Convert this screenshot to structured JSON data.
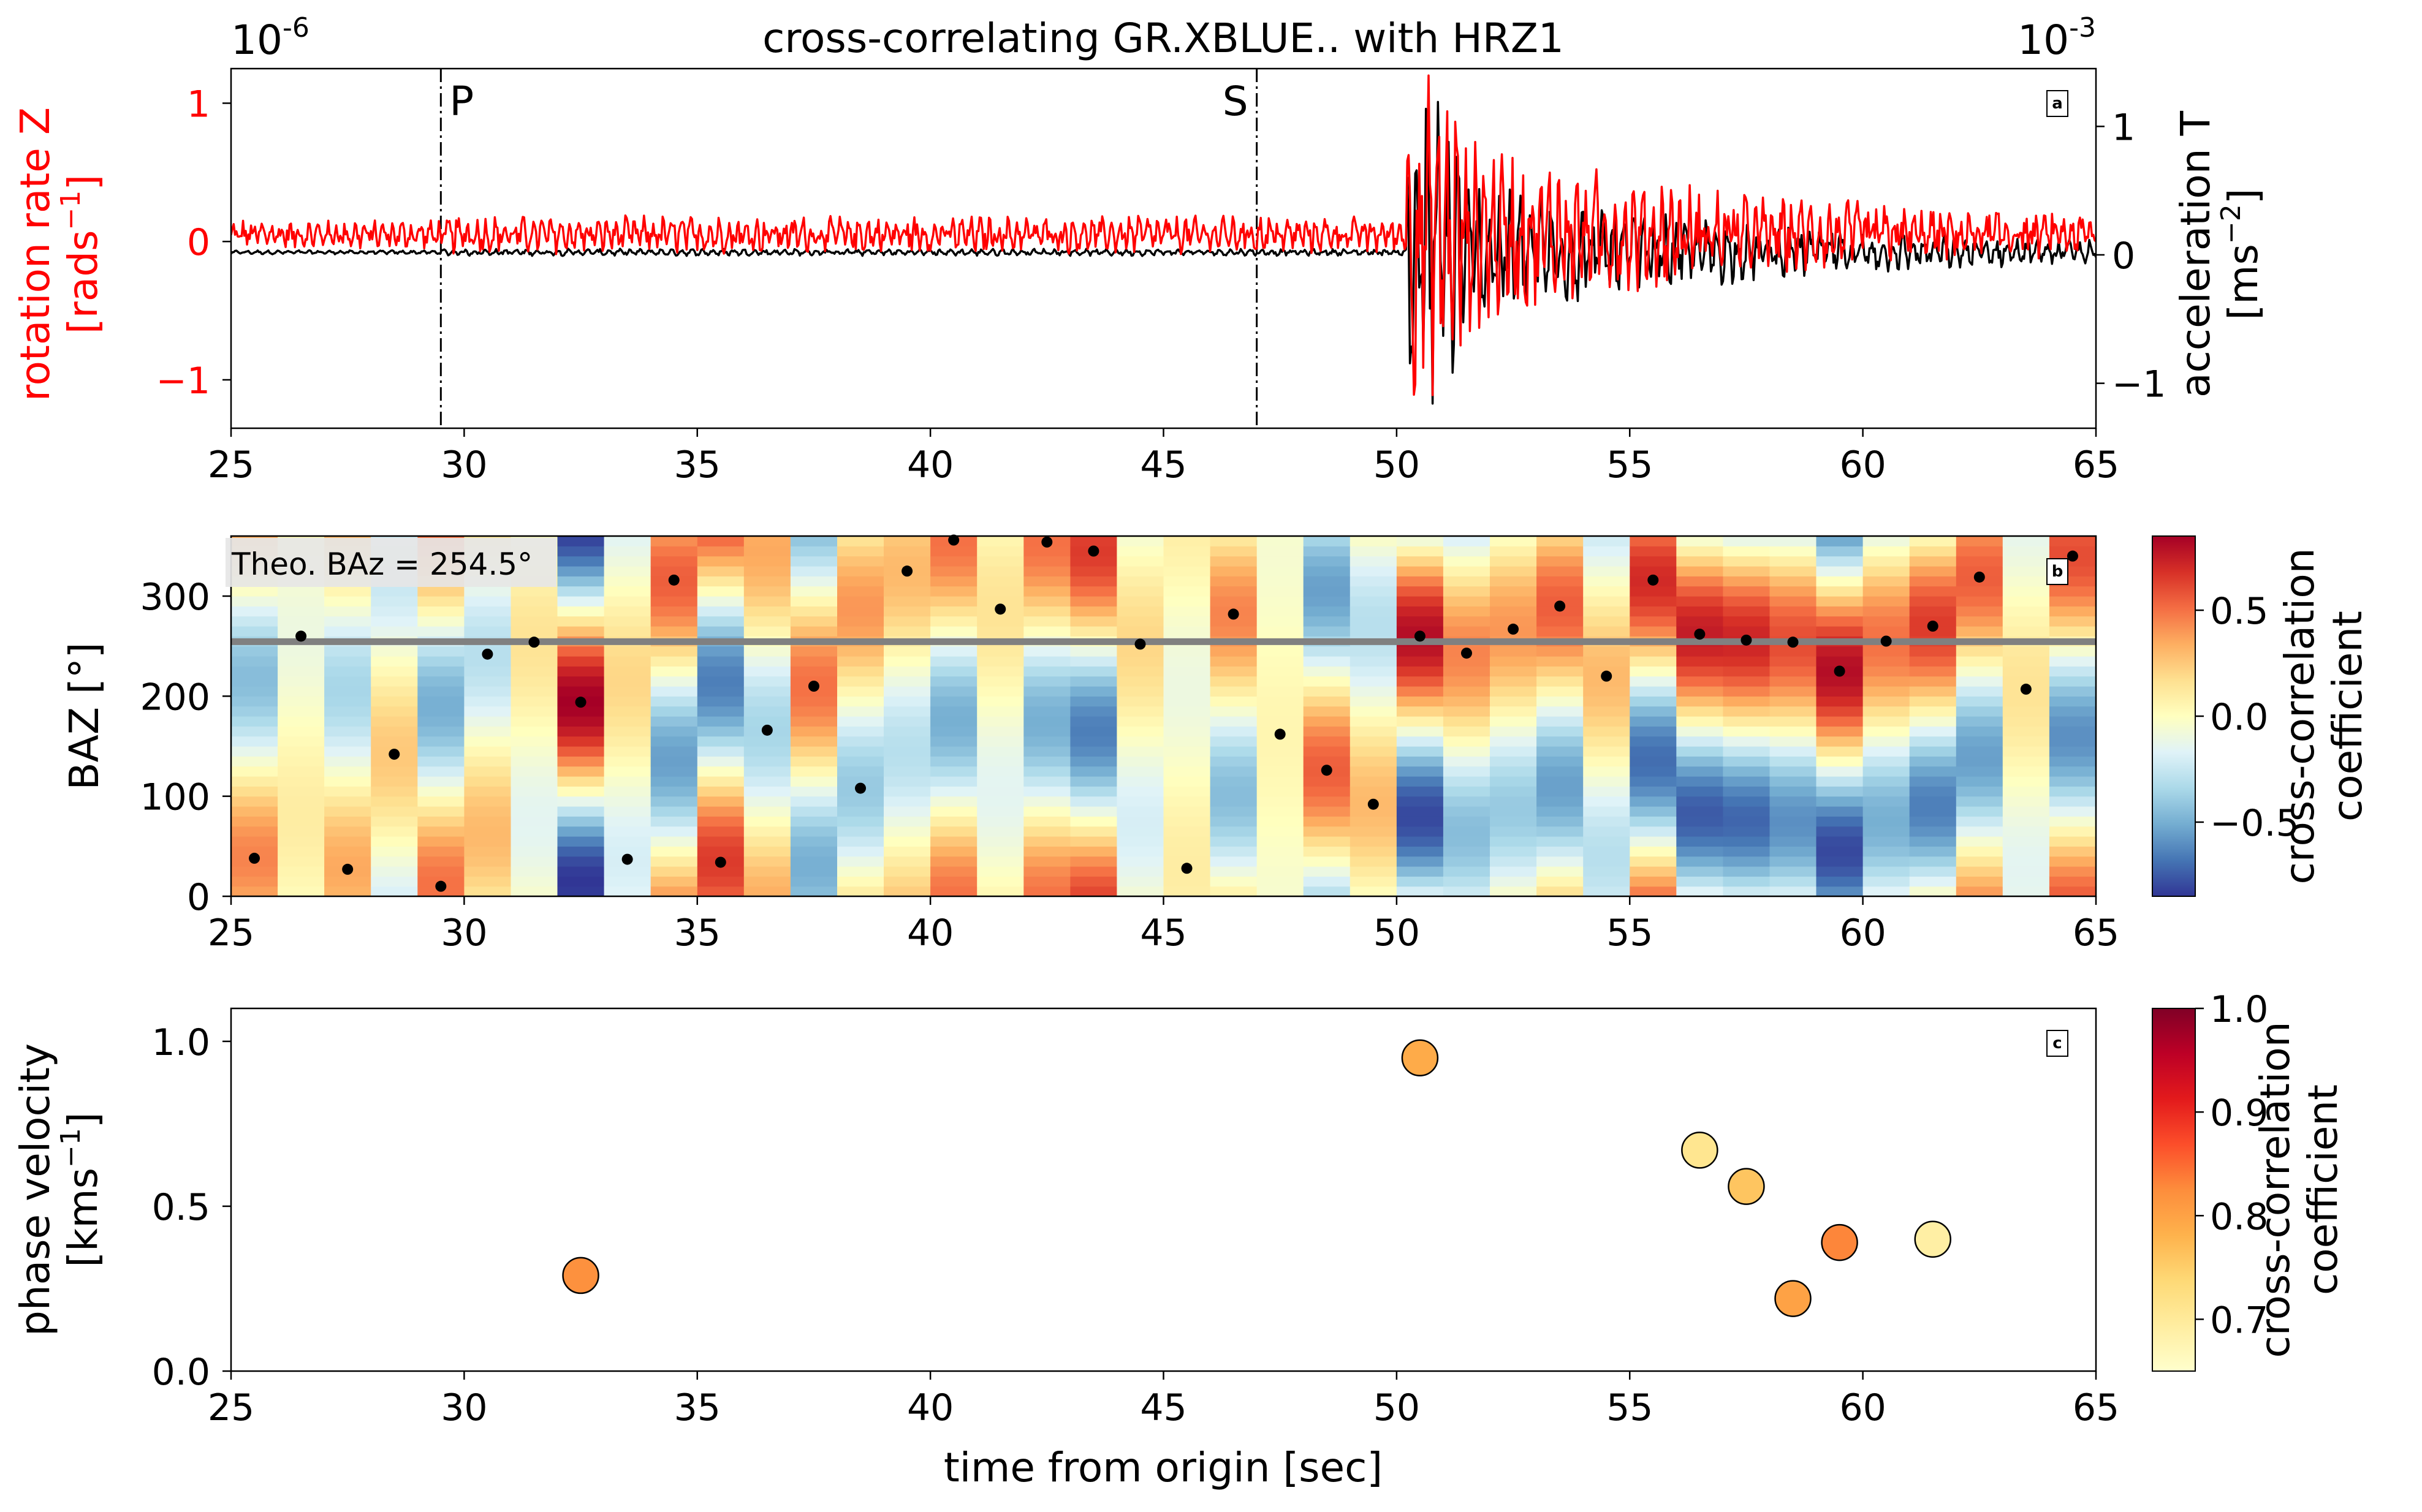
{
  "figure": {
    "title": "cross-correlating GR.XBLUE.. with HRZ1",
    "xlabel": "time from origin [sec]",
    "x_ticks": [
      "25",
      "30",
      "35",
      "40",
      "45",
      "50",
      "55",
      "60",
      "65"
    ]
  },
  "chart_data": [
    {
      "id": "a",
      "type": "line",
      "panel_label": "a",
      "xlim": [
        25,
        65
      ],
      "left_axis": {
        "label_line1": "rotation rate Z",
        "label_line2": "[rads",
        "label_sup": "−1",
        "label_end": "]",
        "scale": "10",
        "scale_exp": "-6",
        "ylim": [
          -1.35,
          1.25
        ],
        "ticks": [
          -1,
          0,
          1
        ],
        "tick_labels": [
          "−1",
          "0",
          "1"
        ],
        "color": "#ff0000"
      },
      "right_axis": {
        "label_line1": "acceleration T",
        "label_line2": "[ms",
        "label_sup": "−2",
        "label_end": "]",
        "scale": "10",
        "scale_exp": "-3",
        "ylim": [
          -1.35,
          1.45
        ],
        "ticks": [
          -1,
          0,
          1
        ],
        "tick_labels": [
          "−1",
          "0",
          "1"
        ],
        "color": "#000000"
      },
      "series": [
        {
          "name": "rotation rate Z",
          "axis": "left",
          "color": "#ff0000"
        },
        {
          "name": "acceleration T",
          "axis": "right",
          "color": "#000000"
        }
      ],
      "phase_markers": [
        {
          "label": "P",
          "time": 29.5
        },
        {
          "label": "S",
          "time": 47.0
        }
      ]
    },
    {
      "id": "b",
      "type": "heatmap",
      "panel_label": "b",
      "xlim": [
        25,
        65
      ],
      "ylim": [
        0,
        360
      ],
      "ylabel": "BAZ [°]",
      "y_ticks": [
        0,
        100,
        200,
        300
      ],
      "theo_baz": 254.5,
      "theo_label": "Theo. BAz = 254.5°",
      "colorbar": {
        "label_line1": "cross-correlation",
        "label_line2": "coefficient",
        "range": [
          -0.85,
          0.85
        ],
        "ticks": [
          "0.5",
          "0.0",
          "−0.5"
        ],
        "tick_values": [
          0.5,
          0.0,
          -0.5
        ]
      },
      "windows_start": 25,
      "window_length": 1,
      "max_baz": [
        38,
        260,
        27,
        142,
        10,
        242,
        254,
        194,
        37,
        316,
        34,
        166,
        210,
        108,
        325,
        356,
        287,
        354,
        345,
        252,
        28,
        282,
        162,
        126,
        92,
        260,
        243,
        267,
        290,
        220,
        316,
        262,
        256,
        254,
        225,
        255,
        270,
        319,
        207,
        340
      ],
      "max_cc": [
        0.45,
        -0.1,
        0.35,
        0.25,
        0.5,
        -0.3,
        0.15,
        0.85,
        -0.2,
        0.55,
        0.65,
        -0.35,
        0.5,
        -0.4,
        0.3,
        0.5,
        0.15,
        0.5,
        0.65,
        0.2,
        0.1,
        0.45,
        0.05,
        0.55,
        0.3,
        0.8,
        0.45,
        0.4,
        0.55,
        0.3,
        0.7,
        0.75,
        0.72,
        0.6,
        0.8,
        0.5,
        0.65,
        0.55,
        0.15,
        0.6
      ]
    },
    {
      "id": "c",
      "type": "scatter",
      "panel_label": "c",
      "xlim": [
        25,
        65
      ],
      "ylim": [
        0,
        1.1
      ],
      "ylabel_line1": "phase velocity",
      "ylabel_line2": "[kms",
      "ylabel_sup": "−1",
      "ylabel_end": "]",
      "y_ticks": [
        0.0,
        0.5,
        1.0
      ],
      "y_tick_labels": [
        "0.0",
        "0.5",
        "1.0"
      ],
      "colorbar": {
        "label_line1": "cross-correlation",
        "label_line2": "coefficient",
        "range": [
          0.65,
          1.0
        ],
        "ticks": [
          "1.0",
          "0.9",
          "0.8",
          "0.7"
        ],
        "tick_values": [
          1.0,
          0.9,
          0.8,
          0.7
        ]
      },
      "points": [
        {
          "time": 32.5,
          "velocity": 0.29,
          "cc": 0.82
        },
        {
          "time": 50.5,
          "velocity": 0.95,
          "cc": 0.79
        },
        {
          "time": 56.5,
          "velocity": 0.67,
          "cc": 0.71
        },
        {
          "time": 57.5,
          "velocity": 0.56,
          "cc": 0.76
        },
        {
          "time": 58.5,
          "velocity": 0.22,
          "cc": 0.8
        },
        {
          "time": 59.5,
          "velocity": 0.39,
          "cc": 0.83
        },
        {
          "time": 61.5,
          "velocity": 0.4,
          "cc": 0.69
        }
      ]
    }
  ]
}
